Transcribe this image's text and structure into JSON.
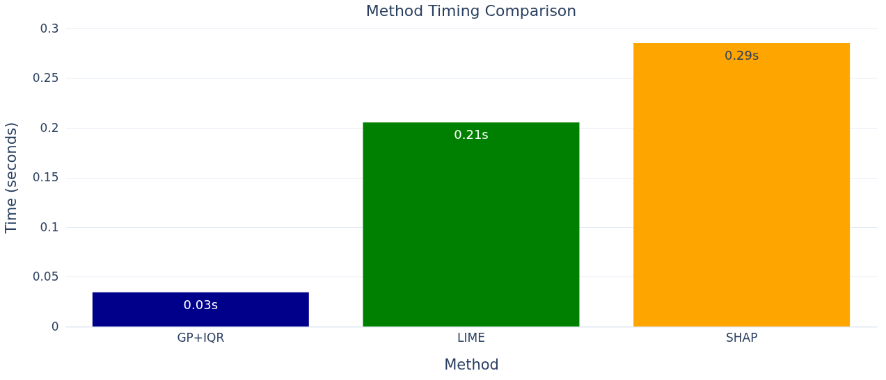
{
  "chart_data": {
    "type": "bar",
    "title": "Method Timing Comparison",
    "xlabel": "Method",
    "ylabel": "Time (seconds)",
    "categories": [
      "GP+IQR",
      "LIME",
      "SHAP"
    ],
    "values": [
      0.0345,
      0.2054,
      0.2854
    ],
    "colors": [
      "#00008b",
      "#008000",
      "#ffa500"
    ],
    "value_labels": [
      "0.03s",
      "0.21s",
      "0.29s"
    ],
    "ylim": [
      0,
      0.3
    ],
    "yticks": [
      0,
      0.05,
      0.1,
      0.15,
      0.2,
      0.25,
      0.3
    ],
    "grid": "y"
  }
}
